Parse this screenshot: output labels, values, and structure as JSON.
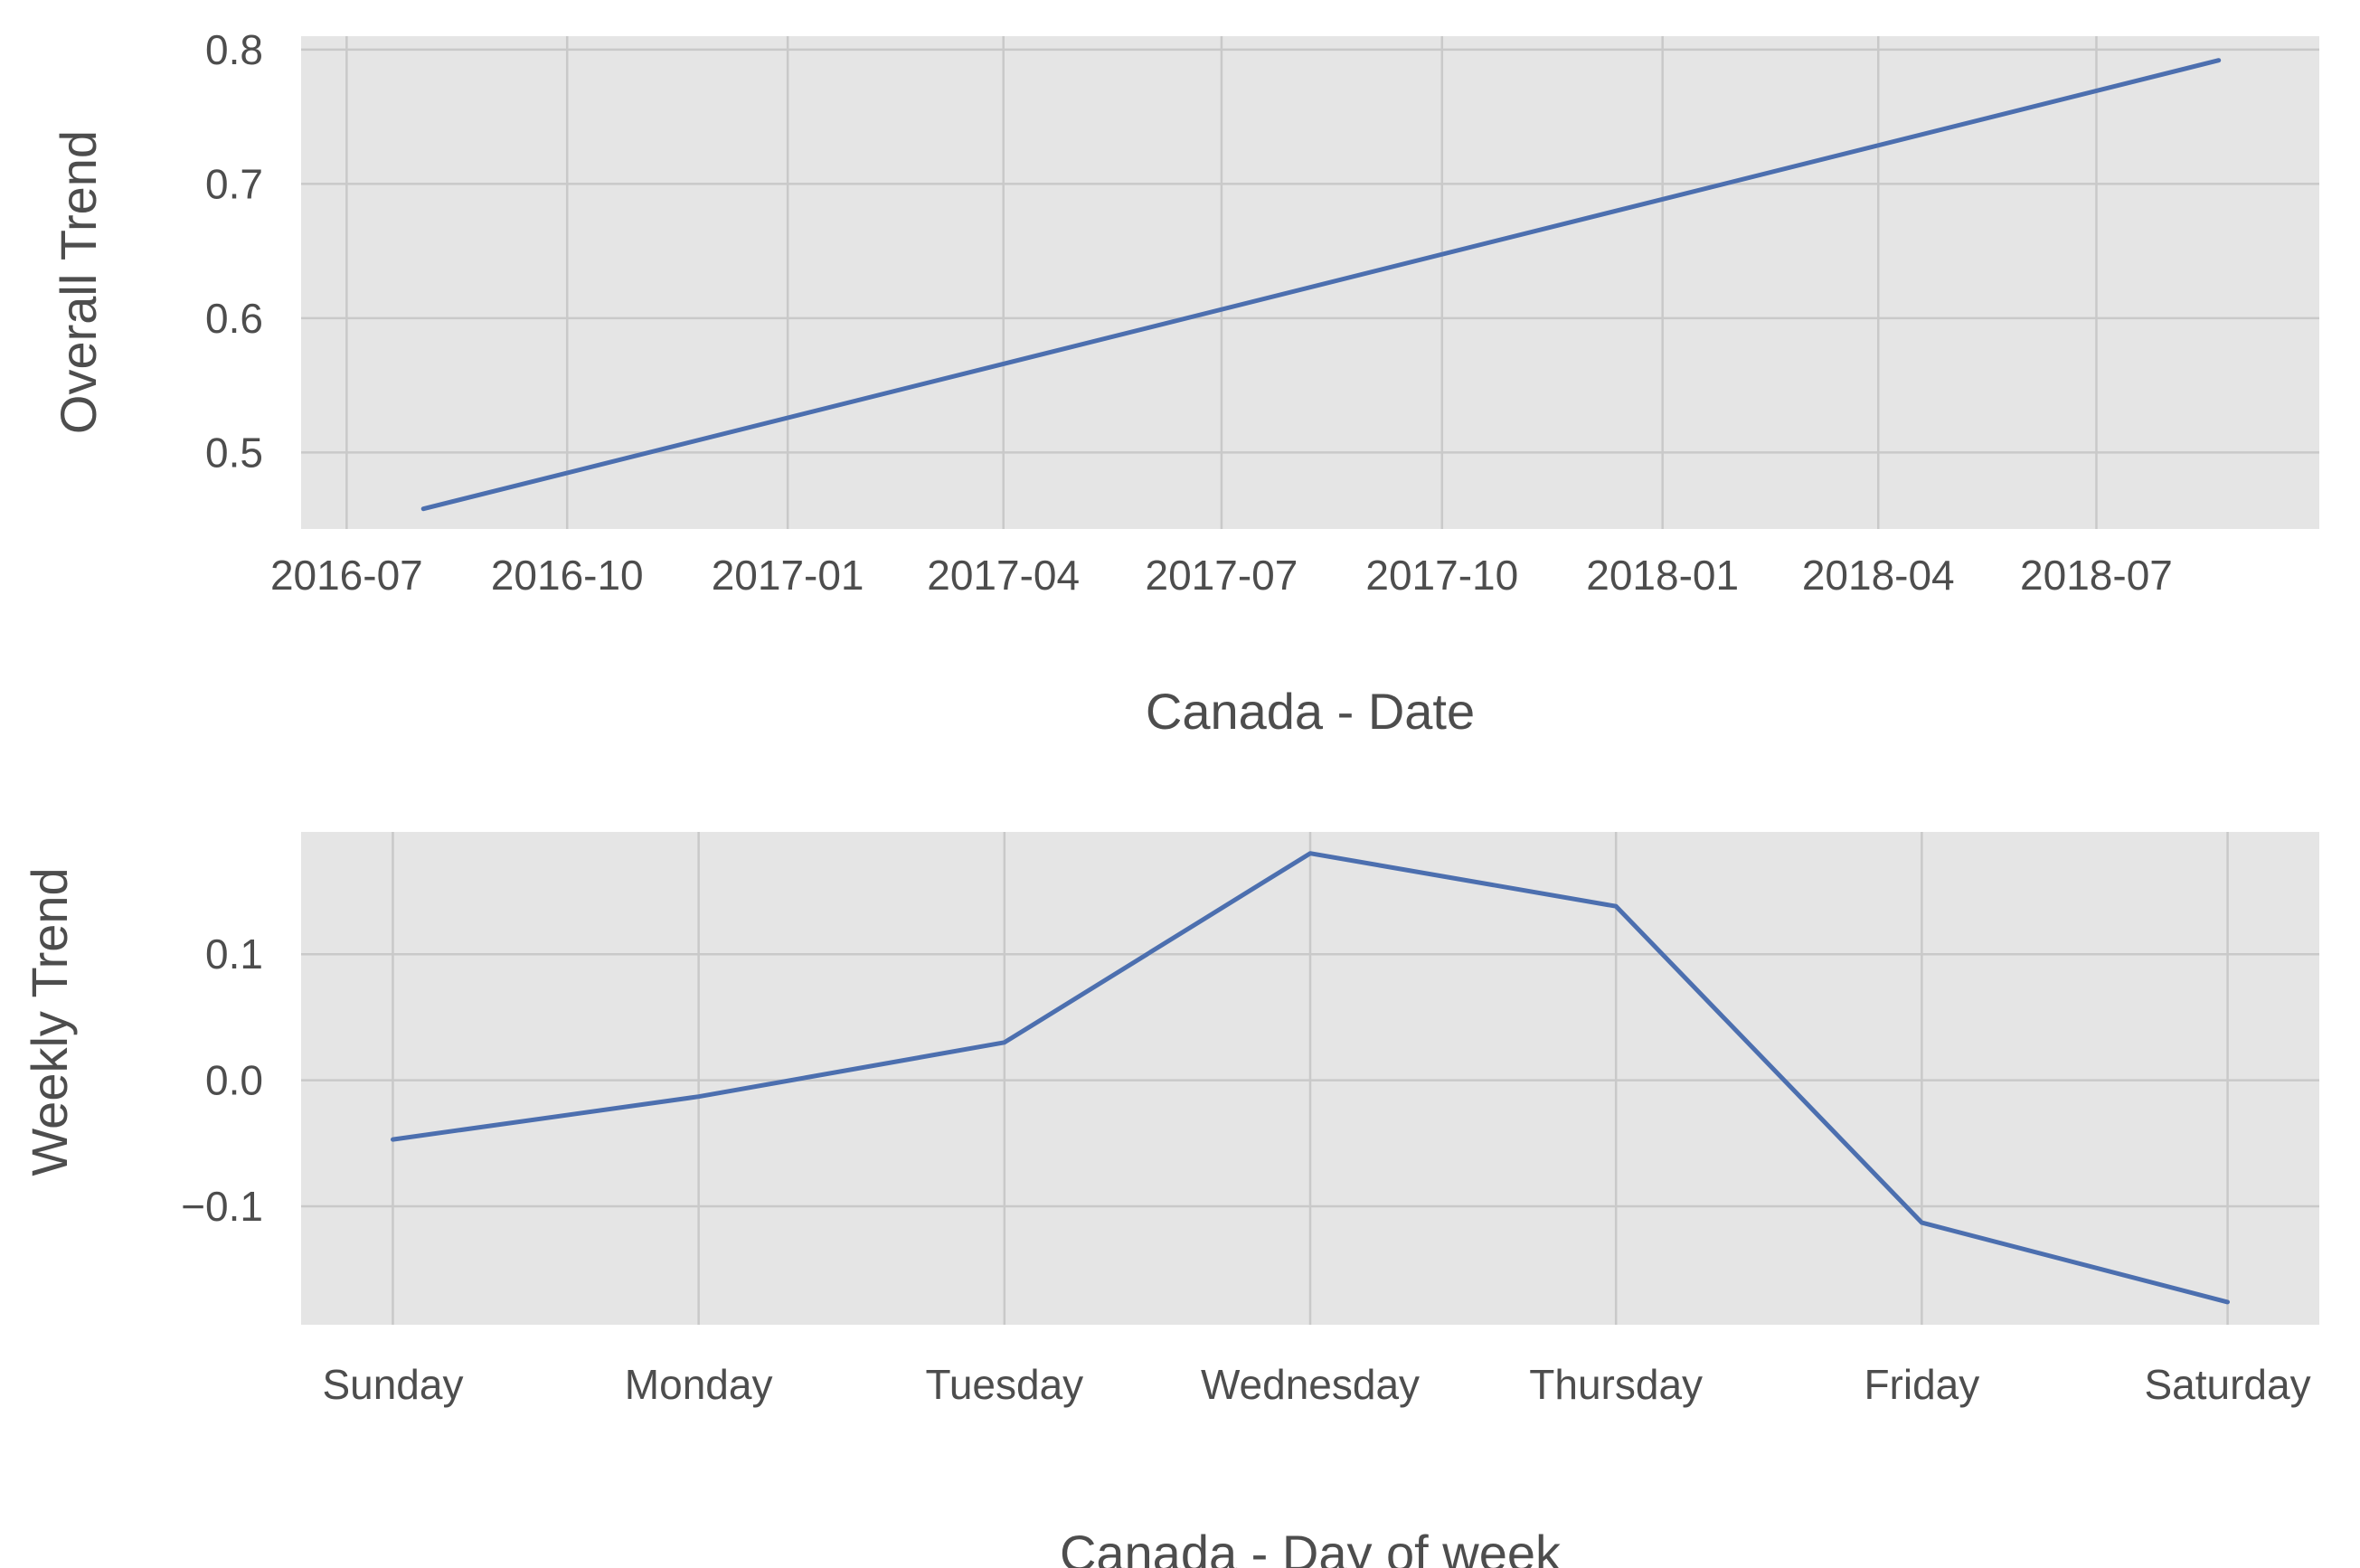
{
  "chart_data": [
    {
      "type": "line",
      "xlabel": "Canada - Date",
      "ylabel": "Overall Trend",
      "x_ticks": [
        "2016-07",
        "2016-10",
        "2017-01",
        "2017-04",
        "2017-07",
        "2017-10",
        "2018-01",
        "2018-04",
        "2018-07"
      ],
      "y_ticks": [
        "0.5",
        "0.6",
        "0.7",
        "0.8"
      ],
      "ylim": [
        0.443,
        0.81
      ],
      "xlim": [
        "2016-06-12",
        "2018-10-02"
      ],
      "series": [
        {
          "x": [
            "2016-08-02",
            "2018-08-21"
          ],
          "values": [
            0.458,
            0.792
          ]
        }
      ],
      "grid": true,
      "line_color": "#4c6faf"
    },
    {
      "type": "line",
      "xlabel": "Canada - Day of week",
      "ylabel": "Weekly Trend",
      "categories": [
        "Sunday",
        "Monday",
        "Tuesday",
        "Wednesday",
        "Thursday",
        "Friday",
        "Saturday"
      ],
      "y_ticks": [
        "−0.1",
        "0.0",
        "0.1"
      ],
      "ylim": [
        -0.194,
        0.197
      ],
      "series": [
        {
          "values": [
            -0.047,
            -0.013,
            0.03,
            0.18,
            0.138,
            -0.113,
            -0.176
          ]
        }
      ],
      "grid": true,
      "line_color": "#4c6faf"
    }
  ]
}
